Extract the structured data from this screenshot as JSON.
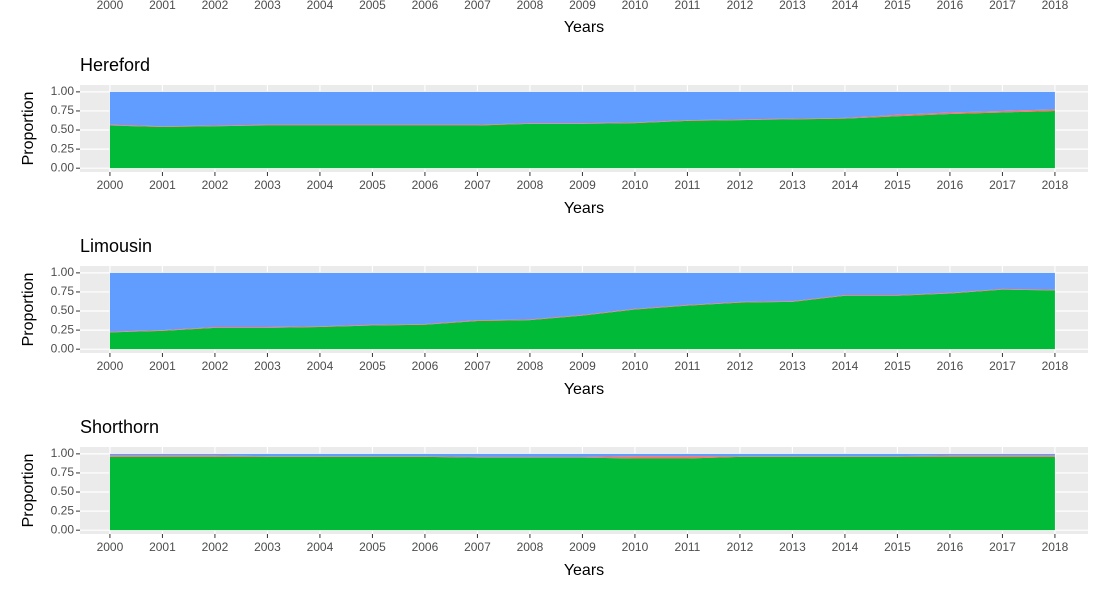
{
  "chart_data": [
    {
      "type": "axis-only",
      "x": [
        2000,
        2001,
        2002,
        2003,
        2004,
        2005,
        2006,
        2007,
        2008,
        2009,
        2010,
        2011,
        2012,
        2013,
        2014,
        2015,
        2016,
        2017,
        2018
      ],
      "xlabel": "Years",
      "xlim": [
        1999.43,
        2018.63
      ],
      "xticks": [
        2000,
        2001,
        2002,
        2003,
        2004,
        2005,
        2006,
        2007,
        2008,
        2009,
        2010,
        2011,
        2012,
        2013,
        2014,
        2015,
        2016,
        2017,
        2018
      ]
    },
    {
      "type": "stacked-area",
      "title": "Hereford",
      "xlabel": "Years",
      "ylabel": "Proportion",
      "x": [
        2000,
        2001,
        2002,
        2003,
        2004,
        2005,
        2006,
        2007,
        2008,
        2009,
        2010,
        2011,
        2012,
        2013,
        2014,
        2015,
        2016,
        2017,
        2018
      ],
      "xlim": [
        1999.43,
        2018.63
      ],
      "xticks": [
        2000,
        2001,
        2002,
        2003,
        2004,
        2005,
        2006,
        2007,
        2008,
        2009,
        2010,
        2011,
        2012,
        2013,
        2014,
        2015,
        2016,
        2017,
        2018
      ],
      "ylim": [
        -0.05,
        1.09
      ],
      "yticks": [
        {
          "value": 0,
          "label": "0.00"
        },
        {
          "value": 0.25,
          "label": "0.25"
        },
        {
          "value": 0.5,
          "label": "0.50"
        },
        {
          "value": 0.75,
          "label": "0.75"
        },
        {
          "value": 1,
          "label": "1.00"
        }
      ],
      "grid": true,
      "series": [
        {
          "color": "#00ba38",
          "values": [
            0.56,
            0.54,
            0.55,
            0.56,
            0.56,
            0.56,
            0.56,
            0.56,
            0.58,
            0.58,
            0.59,
            0.62,
            0.63,
            0.64,
            0.65,
            0.68,
            0.71,
            0.73,
            0.75
          ]
        },
        {
          "color": "#f8766d",
          "values": [
            0.01,
            0.01,
            0.01,
            0.01,
            0.01,
            0.01,
            0.01,
            0.01,
            0.01,
            0.01,
            0.01,
            0.01,
            0.01,
            0.01,
            0.01,
            0.02,
            0.02,
            0.02,
            0.02
          ]
        },
        {
          "color": "#619cff",
          "values": [
            0.43,
            0.45,
            0.44,
            0.43,
            0.43,
            0.43,
            0.43,
            0.43,
            0.41,
            0.41,
            0.4,
            0.37,
            0.36,
            0.35,
            0.34,
            0.3,
            0.27,
            0.25,
            0.23
          ]
        }
      ]
    },
    {
      "type": "stacked-area",
      "title": "Limousin",
      "xlabel": "Years",
      "ylabel": "Proportion",
      "x": [
        2000,
        2001,
        2002,
        2003,
        2004,
        2005,
        2006,
        2007,
        2008,
        2009,
        2010,
        2011,
        2012,
        2013,
        2014,
        2015,
        2016,
        2017,
        2018
      ],
      "xlim": [
        1999.43,
        2018.63
      ],
      "xticks": [
        2000,
        2001,
        2002,
        2003,
        2004,
        2005,
        2006,
        2007,
        2008,
        2009,
        2010,
        2011,
        2012,
        2013,
        2014,
        2015,
        2016,
        2017,
        2018
      ],
      "ylim": [
        -0.05,
        1.09
      ],
      "yticks": [
        {
          "value": 0,
          "label": "0.00"
        },
        {
          "value": 0.25,
          "label": "0.25"
        },
        {
          "value": 0.5,
          "label": "0.50"
        },
        {
          "value": 0.75,
          "label": "0.75"
        },
        {
          "value": 1,
          "label": "1.00"
        }
      ],
      "grid": true,
      "series": [
        {
          "color": "#00ba38",
          "values": [
            0.22,
            0.24,
            0.28,
            0.28,
            0.29,
            0.31,
            0.32,
            0.37,
            0.38,
            0.44,
            0.52,
            0.57,
            0.61,
            0.62,
            0.7,
            0.7,
            0.73,
            0.78,
            0.77
          ]
        },
        {
          "color": "#f8766d",
          "values": [
            0.01,
            0.01,
            0.01,
            0.01,
            0.01,
            0.01,
            0.01,
            0.01,
            0.01,
            0.01,
            0.01,
            0.01,
            0.01,
            0.01,
            0.01,
            0.01,
            0.01,
            0.01,
            0.01
          ]
        },
        {
          "color": "#619cff",
          "values": [
            0.77,
            0.75,
            0.71,
            0.71,
            0.7,
            0.68,
            0.67,
            0.62,
            0.61,
            0.55,
            0.47,
            0.42,
            0.38,
            0.37,
            0.29,
            0.29,
            0.26,
            0.21,
            0.22
          ]
        }
      ]
    },
    {
      "type": "stacked-area",
      "title": "Shorthorn",
      "xlabel": "Years",
      "ylabel": "Proportion",
      "x": [
        2000,
        2001,
        2002,
        2003,
        2004,
        2005,
        2006,
        2007,
        2008,
        2009,
        2010,
        2011,
        2012,
        2013,
        2014,
        2015,
        2016,
        2017,
        2018
      ],
      "xlim": [
        1999.43,
        2018.63
      ],
      "xticks": [
        2000,
        2001,
        2002,
        2003,
        2004,
        2005,
        2006,
        2007,
        2008,
        2009,
        2010,
        2011,
        2012,
        2013,
        2014,
        2015,
        2016,
        2017,
        2018
      ],
      "ylim": [
        -0.05,
        1.09
      ],
      "yticks": [
        {
          "value": 0,
          "label": "0.00"
        },
        {
          "value": 0.25,
          "label": "0.25"
        },
        {
          "value": 0.5,
          "label": "0.50"
        },
        {
          "value": 0.75,
          "label": "0.75"
        },
        {
          "value": 1,
          "label": "1.00"
        }
      ],
      "grid": true,
      "series": [
        {
          "color": "#00ba38",
          "values": [
            0.96,
            0.96,
            0.96,
            0.96,
            0.96,
            0.96,
            0.96,
            0.95,
            0.95,
            0.95,
            0.94,
            0.94,
            0.96,
            0.96,
            0.96,
            0.96,
            0.96,
            0.96,
            0.96
          ]
        },
        {
          "color": "#f8766d",
          "values": [
            0.02,
            0.02,
            0.02,
            0.01,
            0.01,
            0.01,
            0.01,
            0.01,
            0.01,
            0.01,
            0.03,
            0.03,
            0.01,
            0.01,
            0.01,
            0.01,
            0.02,
            0.02,
            0.02
          ]
        },
        {
          "color": "#619cff",
          "values": [
            0.02,
            0.02,
            0.02,
            0.03,
            0.03,
            0.03,
            0.03,
            0.04,
            0.04,
            0.04,
            0.03,
            0.03,
            0.03,
            0.03,
            0.03,
            0.03,
            0.02,
            0.02,
            0.02
          ]
        }
      ]
    }
  ]
}
